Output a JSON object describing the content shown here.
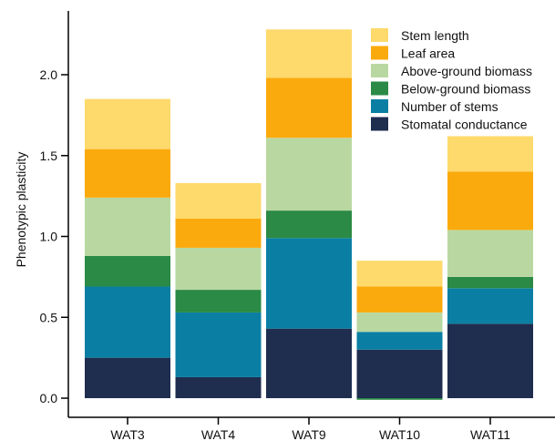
{
  "chart_data": {
    "type": "bar",
    "stacked": true,
    "title": "",
    "xlabel": "",
    "ylabel": "Phenotypic plasticity",
    "ylim": [
      0,
      2.4
    ],
    "yticks": [
      "0.0",
      "0.5",
      "1.0",
      "1.5",
      "2.0"
    ],
    "ytick_values": [
      0,
      0.5,
      1.0,
      1.5,
      2.0
    ],
    "categories": [
      "WAT3",
      "WAT4",
      "WAT9",
      "WAT10",
      "WAT11"
    ],
    "grid": false,
    "legend_position": "top-right",
    "series": [
      {
        "name": "Stomatal conductance",
        "color": "#1f2d4f",
        "values": [
          0.25,
          0.13,
          0.43,
          0.3,
          0.46
        ]
      },
      {
        "name": "Number of stems",
        "color": "#0a7fa3",
        "values": [
          0.44,
          0.4,
          0.56,
          0.11,
          0.22
        ]
      },
      {
        "name": "Below-ground biomass",
        "color": "#2b8a45",
        "values": [
          0.19,
          0.14,
          0.17,
          -0.01,
          0.07
        ]
      },
      {
        "name": "Above-ground biomass",
        "color": "#b9d8a1",
        "values": [
          0.36,
          0.26,
          0.45,
          0.12,
          0.29
        ]
      },
      {
        "name": "Leaf area",
        "color": "#fbaa0d",
        "values": [
          0.3,
          0.18,
          0.37,
          0.16,
          0.36
        ]
      },
      {
        "name": "Stem length",
        "color": "#fed96c",
        "values": [
          0.31,
          0.22,
          0.3,
          0.16,
          0.22
        ]
      }
    ],
    "legend_order": [
      "Stem length",
      "Leaf area",
      "Above-ground biomass",
      "Below-ground biomass",
      "Number of stems",
      "Stomatal conductance"
    ]
  }
}
